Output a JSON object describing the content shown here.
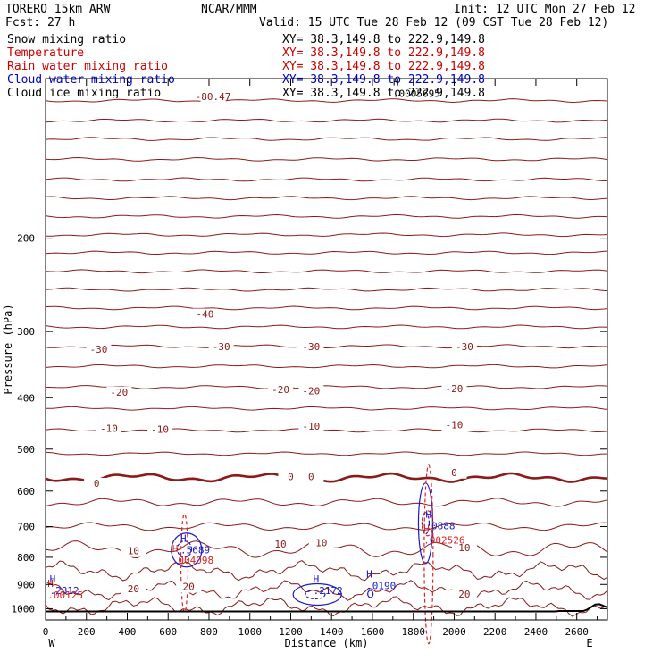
{
  "header": {
    "model": "TORERO  15km ARW",
    "center": "NCAR/MMM",
    "init": "Init: 12 UTC Mon 27 Feb 12",
    "fcst": "Fcst:   27 h",
    "valid": "Valid: 15 UTC Tue 28 Feb 12 (09 CST Tue 28 Feb 12)",
    "fields": [
      {
        "label": "Snow mixing ratio",
        "xy": "XY=  38.3,149.8 to 222.9,149.8",
        "color": "#000000"
      },
      {
        "label": "Temperature",
        "xy": "XY=  38.3,149.8 to 222.9,149.8",
        "color": "#cc0000"
      },
      {
        "label": "Rain water mixing ratio",
        "xy": "XY=  38.3,149.8 to 222.9,149.8",
        "color": "#cc0000"
      },
      {
        "label": "Cloud water mixing ratio",
        "xy": "XY=  38.3,149.8 to 222.9,149.8",
        "color": "#0000cc"
      },
      {
        "label": "Cloud ice mixing ratio",
        "xy": "XY=  38.3,149.8 to 222.9,149.8",
        "color": "#000000"
      }
    ]
  },
  "chart_data": {
    "type": "line",
    "title": "",
    "xlabel": "Distance (km)",
    "ylabel": "Pressure (hPa)",
    "xlim": [
      0,
      2750
    ],
    "ylim": [
      1050,
      100
    ],
    "x_ticks": [
      0,
      200,
      400,
      600,
      800,
      1000,
      1200,
      1400,
      1600,
      1800,
      2000,
      2200,
      2400,
      2600
    ],
    "y_ticks": [
      200,
      300,
      400,
      500,
      600,
      700,
      800,
      900,
      1000
    ],
    "y_scale": "log",
    "end_labels": {
      "left": "W",
      "right": "E"
    },
    "colors": {
      "temperature": "#8b1a1a",
      "rain": "#dd2222",
      "cloud_water": "#1a1acc",
      "ground": "#000000"
    },
    "temperature_isotherm_pressures": [
      110,
      120,
      130,
      142,
      155,
      168,
      182,
      197,
      213,
      231,
      250,
      271,
      294,
      320,
      349,
      382,
      419,
      461,
      510,
      566,
      630,
      700,
      773,
      848,
      923,
      990
    ],
    "isotherm_labels": [
      {
        "text": "-80.47",
        "x": 820,
        "p": 108
      },
      {
        "text": "-40",
        "x": 780,
        "p": 278
      },
      {
        "text": "-30",
        "x": 260,
        "p": 324
      },
      {
        "text": "-30",
        "x": 860,
        "p": 320
      },
      {
        "text": "-30",
        "x": 1300,
        "p": 320
      },
      {
        "text": "-30",
        "x": 2050,
        "p": 320
      },
      {
        "text": "-20",
        "x": 360,
        "p": 390
      },
      {
        "text": "-20",
        "x": 1150,
        "p": 386
      },
      {
        "text": "-20",
        "x": 1300,
        "p": 388
      },
      {
        "text": "-20",
        "x": 2000,
        "p": 384
      },
      {
        "text": "-10",
        "x": 310,
        "p": 457
      },
      {
        "text": "-10",
        "x": 560,
        "p": 459
      },
      {
        "text": "-10",
        "x": 1300,
        "p": 452
      },
      {
        "text": "-10",
        "x": 2000,
        "p": 450
      },
      {
        "text": "0",
        "x": 250,
        "p": 580
      },
      {
        "text": "0",
        "x": 1200,
        "p": 563
      },
      {
        "text": "0",
        "x": 1300,
        "p": 563
      },
      {
        "text": "0",
        "x": 2000,
        "p": 553
      },
      {
        "text": "10",
        "x": 1150,
        "p": 755
      },
      {
        "text": "10",
        "x": 1350,
        "p": 751
      },
      {
        "text": "10",
        "x": 2050,
        "p": 767
      },
      {
        "text": "10",
        "x": 430,
        "p": 778
      },
      {
        "text": "20",
        "x": 430,
        "p": 917
      },
      {
        "text": "20",
        "x": 700,
        "p": 908
      },
      {
        "text": "20",
        "x": 2050,
        "p": 939
      }
    ],
    "maxima": [
      {
        "mark": "H",
        "value": ".0005695",
        "x": 1700,
        "p": 107,
        "color": "#000000"
      },
      {
        "mark": "H",
        "value": ".5689",
        "x": 660,
        "p": 778,
        "color": "#1a1acc"
      },
      {
        "mark": "H",
        "value": ".004098",
        "x": 620,
        "p": 813,
        "color": "#dd2222"
      },
      {
        "mark": "H",
        "value": ".0888",
        "x": 1860,
        "p": 700,
        "color": "#1a1acc"
      },
      {
        "mark": "H",
        "value": ".002526",
        "x": 1850,
        "p": 745,
        "color": "#dd2222"
      },
      {
        "mark": "H",
        "value": ".2172",
        "x": 1310,
        "p": 928,
        "color": "#1a1acc"
      },
      {
        "mark": "H",
        "value": ".0190",
        "x": 1570,
        "p": 908,
        "color": "#1a1acc"
      },
      {
        "mark": "H",
        "value": ".2812",
        "x": 20,
        "p": 927,
        "color": "#1a1acc"
      },
      {
        "mark": "H",
        "value": ".00125",
        "x": 10,
        "p": 945,
        "color": "#dd2222"
      }
    ]
  }
}
